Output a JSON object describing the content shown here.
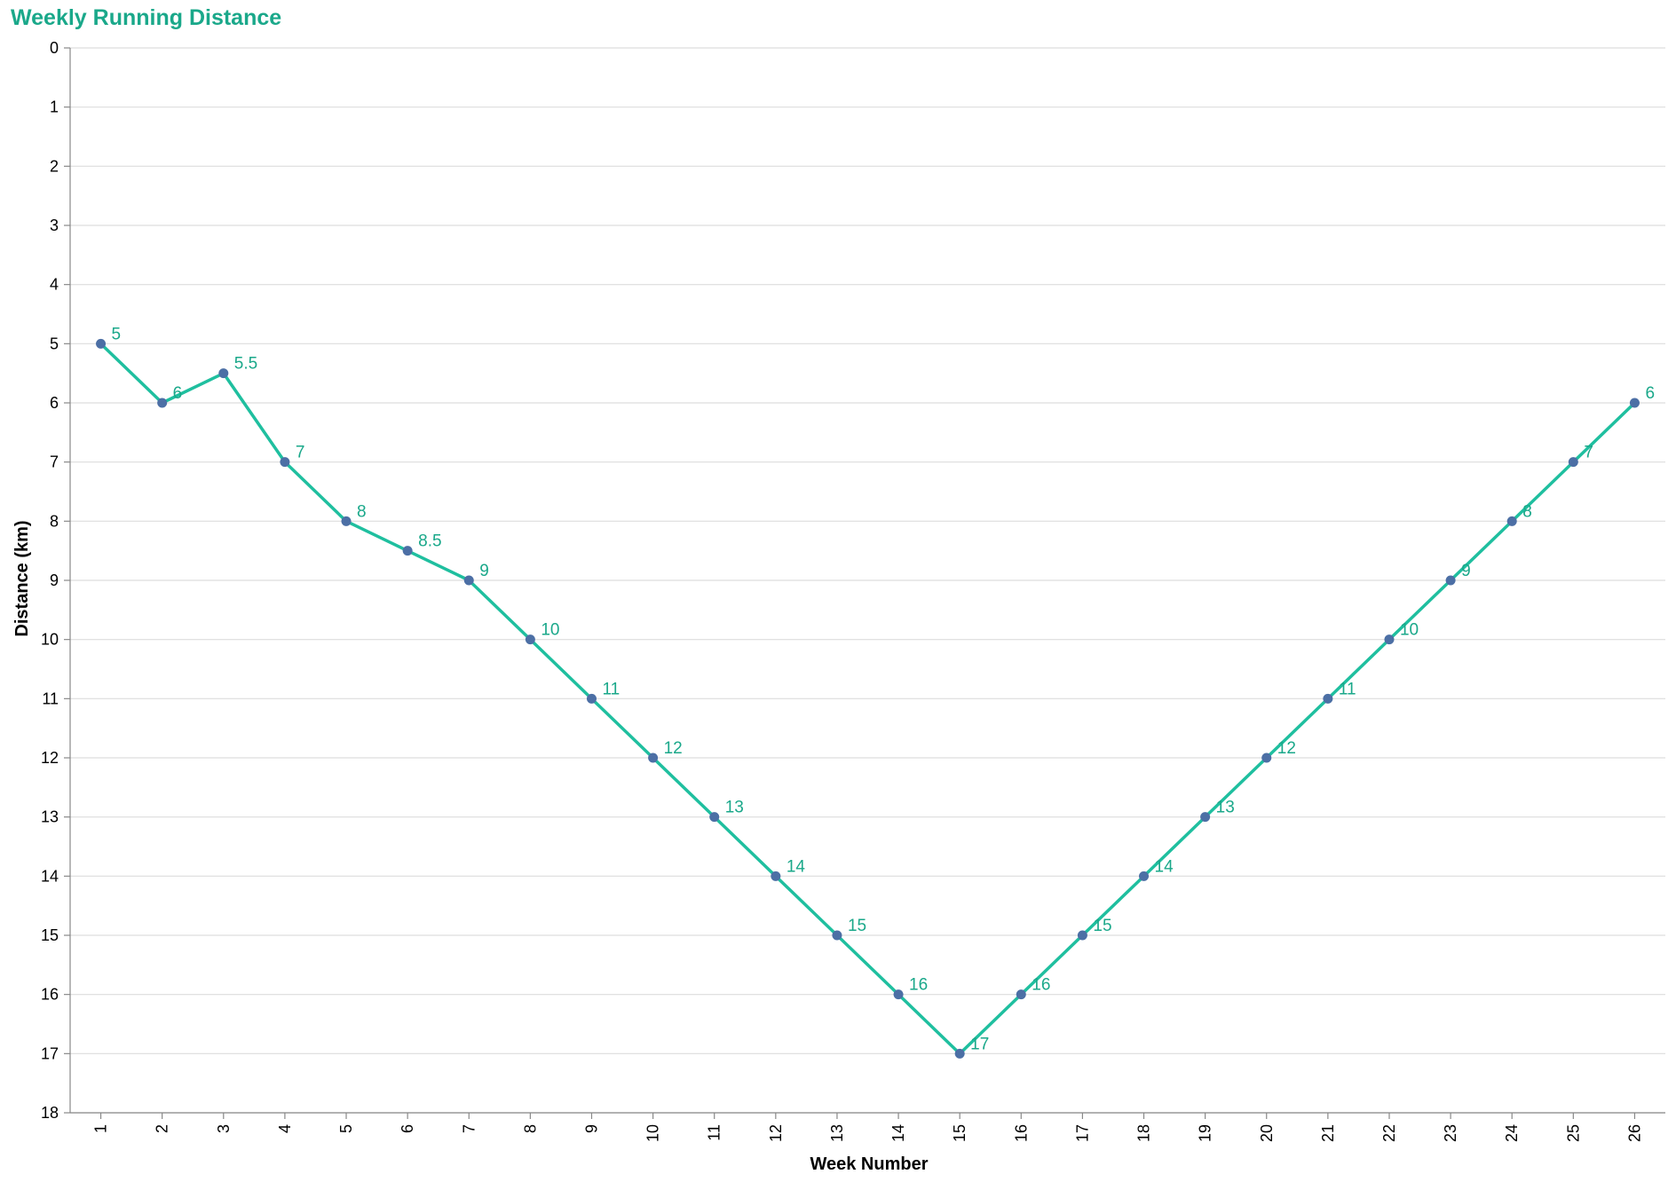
{
  "chart_data": {
    "type": "line",
    "title": "Weekly Running Distance",
    "xlabel": "Week Number",
    "ylabel": "Distance (km)",
    "x": [
      1,
      2,
      3,
      4,
      5,
      6,
      7,
      8,
      9,
      10,
      11,
      12,
      13,
      14,
      15,
      16,
      17,
      18,
      19,
      20,
      21,
      22,
      23,
      24,
      25,
      26
    ],
    "y": [
      5,
      6,
      5.5,
      7,
      8,
      8.5,
      9,
      10,
      11,
      12,
      13,
      14,
      15,
      16,
      17,
      16,
      15,
      14,
      13,
      12,
      11,
      10,
      9,
      8,
      7,
      6
    ],
    "data_labels": [
      "5",
      "6",
      "5.5",
      "7",
      "8",
      "8.5",
      "9",
      "10",
      "11",
      "12",
      "13",
      "14",
      "15",
      "16",
      "17",
      "16",
      "15",
      "14",
      "13",
      "12",
      "11",
      "10",
      "9",
      "8",
      "7",
      "6"
    ],
    "y_ticks": [
      "0",
      "1",
      "2",
      "3",
      "4",
      "5",
      "6",
      "7",
      "8",
      "9",
      "10",
      "11",
      "12",
      "13",
      "14",
      "15",
      "16",
      "17",
      "18"
    ],
    "x_ticks": [
      "1",
      "2",
      "3",
      "4",
      "5",
      "6",
      "7",
      "8",
      "9",
      "10",
      "11",
      "12",
      "13",
      "14",
      "15",
      "16",
      "17",
      "18",
      "19",
      "20",
      "21",
      "22",
      "23",
      "24",
      "25",
      "26"
    ],
    "ylim": [
      0,
      18
    ],
    "y_axis_reversed": true,
    "grid": "horizontal",
    "legend": "none",
    "colors": {
      "title": "#1aa88a",
      "line": "#1fbf9f",
      "point": "#4c6fa5",
      "label": "#1aa88a",
      "grid": "#dddddd",
      "axis": "#888888"
    }
  }
}
